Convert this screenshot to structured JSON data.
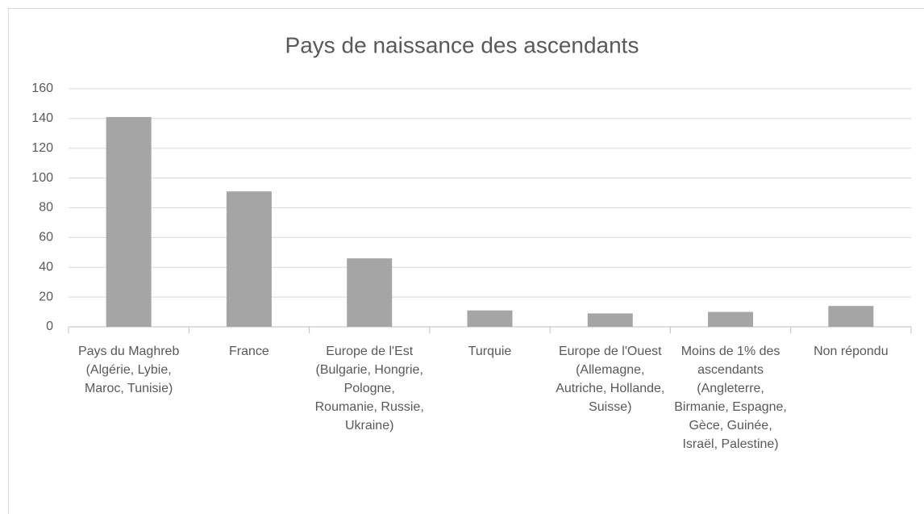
{
  "chart_data": {
    "type": "bar",
    "title": "Pays de naissance des ascendants",
    "categories": [
      "Pays du Maghreb (Algérie, Lybie, Maroc, Tunisie)",
      "France",
      "Europe de l'Est (Bulgarie, Hongrie, Pologne, Roumanie, Russie, Ukraine)",
      "Turquie",
      "Europe de l'Ouest (Allemagne, Autriche, Hollande, Suisse)",
      "Moins de 1% des ascendants (Angleterre, Birmanie, Espagne, Gèce, Guinée, Israël, Palestine)",
      "Non répondu"
    ],
    "values": [
      141,
      91,
      46,
      11,
      9,
      10,
      14
    ],
    "color": "#a5a5a5",
    "ylim": [
      0,
      160
    ],
    "yticks": [
      0,
      20,
      40,
      60,
      80,
      100,
      120,
      140,
      160
    ],
    "grid": true
  }
}
